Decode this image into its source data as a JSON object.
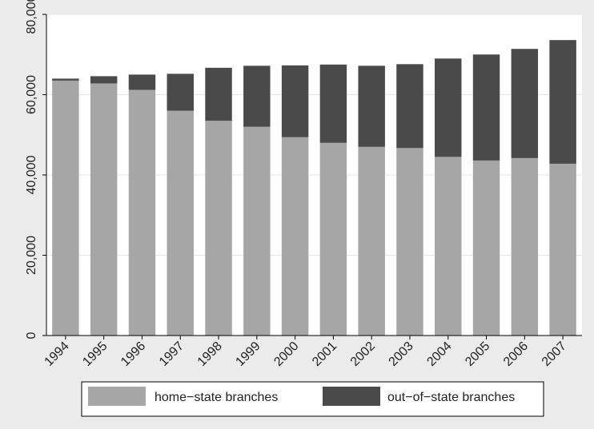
{
  "chart_data": {
    "type": "bar",
    "stacked": true,
    "title": "",
    "xlabel": "",
    "ylabel": "",
    "categories": [
      "1994",
      "1995",
      "1996",
      "1997",
      "1998",
      "1999",
      "2000",
      "2001",
      "2002",
      "2003",
      "2004",
      "2005",
      "2006",
      "2007"
    ],
    "series": [
      {
        "name": "home−state branches",
        "color": "#a6a6a6",
        "values": [
          63500,
          62800,
          61200,
          56000,
          53500,
          52000,
          49400,
          48000,
          47000,
          46700,
          44500,
          43600,
          44200,
          42800
        ]
      },
      {
        "name": "out−of−state branches",
        "color": "#4a4a4a",
        "values": [
          500,
          1800,
          3800,
          9200,
          13200,
          15200,
          17900,
          19500,
          20200,
          20900,
          24500,
          26400,
          27200,
          30800
        ]
      }
    ],
    "ylim": [
      0,
      80000
    ],
    "yticks": [
      0,
      20000,
      40000,
      60000,
      80000
    ],
    "ytick_labels": [
      "0",
      "20,000",
      "40,000",
      "60,000",
      "80,000"
    ],
    "grid": true,
    "legend": "bottom"
  }
}
